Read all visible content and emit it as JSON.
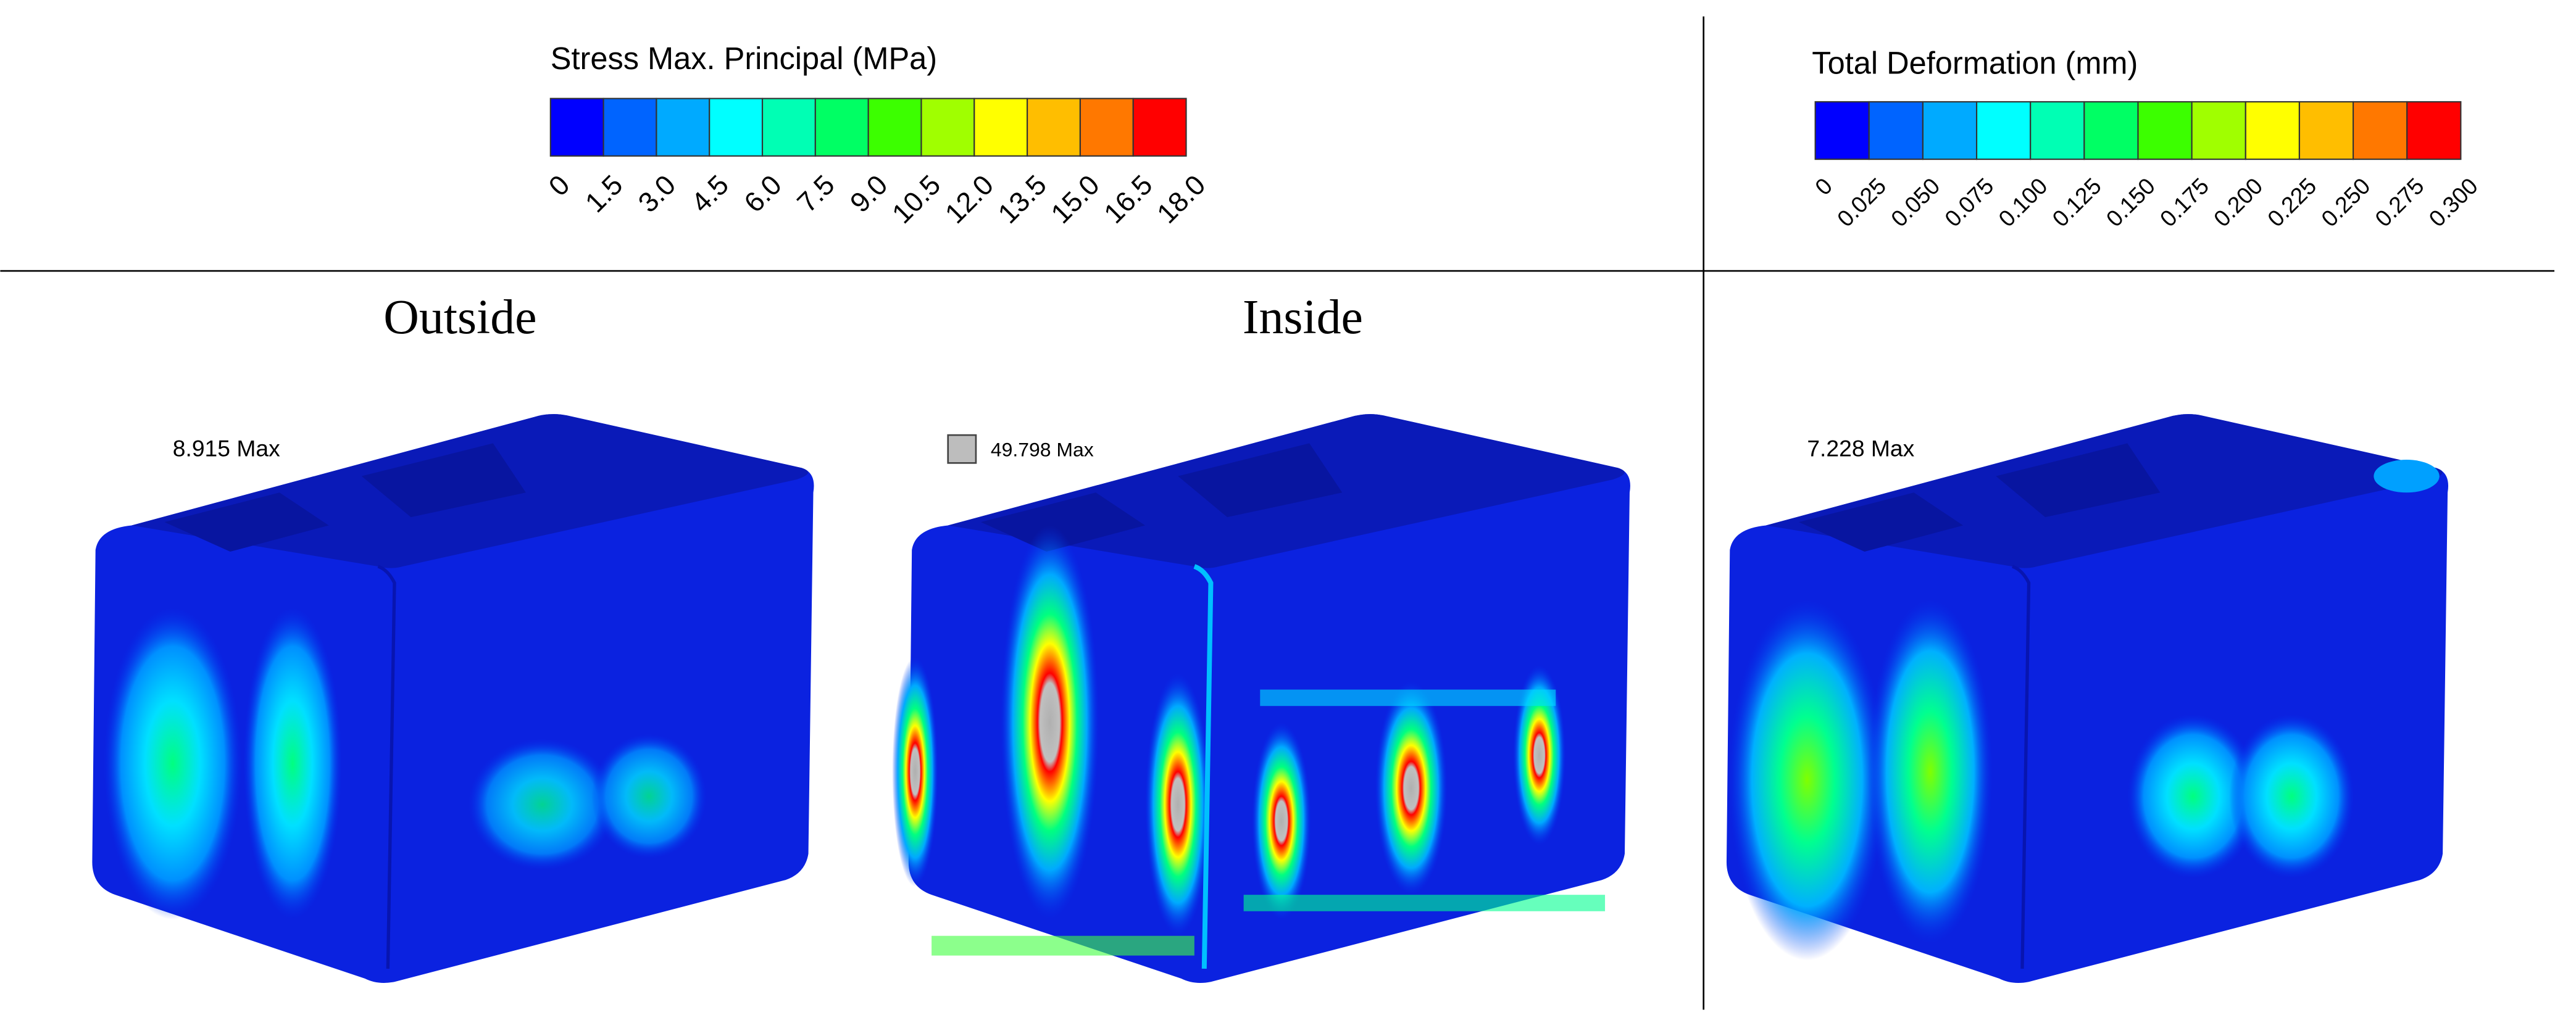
{
  "legends": [
    {
      "title": "Stress Max. Principal (MPa)",
      "ticks": [
        "0",
        "1.5",
        "3.0",
        "4.5",
        "6.0",
        "7.5",
        "9.0",
        "10.5",
        "12.0",
        "13.5",
        "15.0",
        "16.5",
        "18.0"
      ],
      "colors": [
        "#0000ff",
        "#0064ff",
        "#00aaff",
        "#00ffff",
        "#00ffb4",
        "#00ff64",
        "#3cff00",
        "#a0ff00",
        "#ffff00",
        "#ffbe00",
        "#ff7800",
        "#ff0000"
      ]
    },
    {
      "title": "Total Deformation (mm)",
      "ticks": [
        "0",
        "0.025",
        "0.050",
        "0.075",
        "0.100",
        "0.125",
        "0.150",
        "0.175",
        "0.200",
        "0.225",
        "0.250",
        "0.275",
        "0.300"
      ],
      "colors": [
        "#0000ff",
        "#0064ff",
        "#00aaff",
        "#00ffff",
        "#00ffb4",
        "#00ff64",
        "#3cff00",
        "#a0ff00",
        "#ffff00",
        "#ffbe00",
        "#ff7800",
        "#ff0000"
      ]
    }
  ],
  "panels": [
    {
      "title": "Outside",
      "annotation": "8.915 Max"
    },
    {
      "title": "Inside",
      "annotation": "49.798 Max"
    },
    {
      "annotation": "7.228 Max"
    }
  ]
}
